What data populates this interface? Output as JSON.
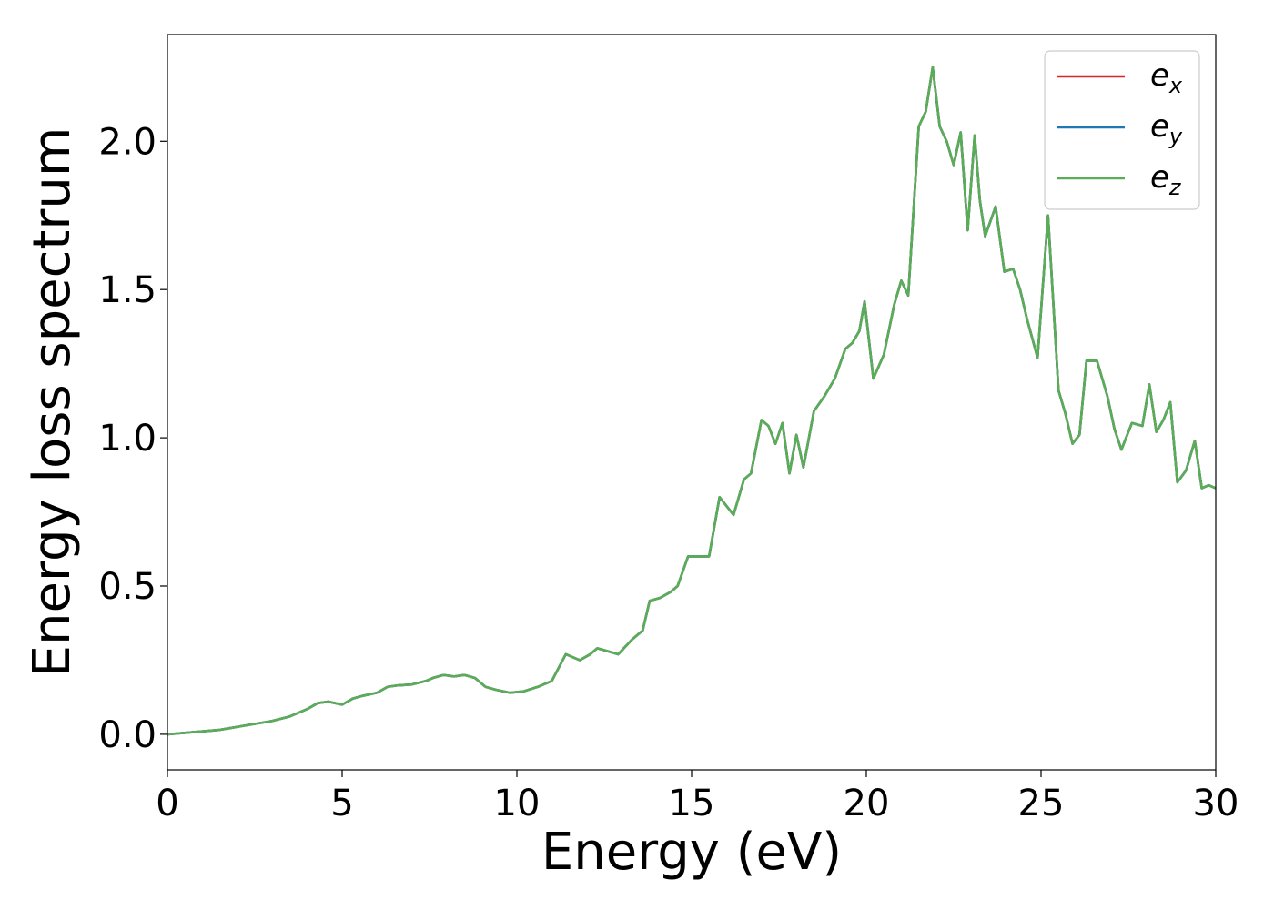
{
  "chart_data": {
    "type": "line",
    "xlabel": "Energy (eV)",
    "ylabel": "Energy loss spectrum",
    "xlim": [
      0,
      30
    ],
    "ylim": [
      -0.12,
      2.36
    ],
    "xticks": [
      "0",
      "5",
      "10",
      "15",
      "20",
      "25",
      "30"
    ],
    "yticks": [
      "0.0",
      "0.5",
      "1.0",
      "1.5",
      "2.0"
    ],
    "grid": false,
    "legend_position": "top-right",
    "x": [
      0,
      0.5,
      1.0,
      1.5,
      2.0,
      2.5,
      3.0,
      3.5,
      4.0,
      4.3,
      4.6,
      5.0,
      5.3,
      5.6,
      6.0,
      6.3,
      6.6,
      7.0,
      7.4,
      7.6,
      7.9,
      8.2,
      8.5,
      8.8,
      9.1,
      9.4,
      9.8,
      10.2,
      10.6,
      11.0,
      11.4,
      11.8,
      12.1,
      12.3,
      12.6,
      12.9,
      13.3,
      13.6,
      13.8,
      14.1,
      14.4,
      14.6,
      14.9,
      15.2,
      15.5,
      15.8,
      16.2,
      16.5,
      16.7,
      17.0,
      17.2,
      17.4,
      17.6,
      17.8,
      18.0,
      18.2,
      18.5,
      18.8,
      19.1,
      19.4,
      19.6,
      19.8,
      19.95,
      20.2,
      20.5,
      20.8,
      21.0,
      21.2,
      21.5,
      21.7,
      21.9,
      22.1,
      22.3,
      22.5,
      22.7,
      22.9,
      23.1,
      23.25,
      23.4,
      23.7,
      23.95,
      24.2,
      24.4,
      24.6,
      24.9,
      25.2,
      25.5,
      25.7,
      25.9,
      26.1,
      26.3,
      26.6,
      26.9,
      27.1,
      27.3,
      27.6,
      27.9,
      28.1,
      28.3,
      28.5,
      28.7,
      28.9,
      29.15,
      29.4,
      29.6,
      29.8,
      30.0
    ],
    "series": [
      {
        "name": "e_x",
        "label_base": "e",
        "label_sub": "x",
        "color": "#d62728",
        "y": [
          0.0,
          0.005,
          0.01,
          0.015,
          0.025,
          0.035,
          0.045,
          0.06,
          0.085,
          0.105,
          0.11,
          0.1,
          0.12,
          0.13,
          0.14,
          0.16,
          0.165,
          0.168,
          0.18,
          0.19,
          0.2,
          0.195,
          0.2,
          0.19,
          0.16,
          0.15,
          0.14,
          0.145,
          0.16,
          0.18,
          0.27,
          0.25,
          0.27,
          0.29,
          0.28,
          0.27,
          0.32,
          0.35,
          0.45,
          0.46,
          0.48,
          0.5,
          0.6,
          0.6,
          0.6,
          0.8,
          0.74,
          0.86,
          0.88,
          1.06,
          1.04,
          0.98,
          1.05,
          0.88,
          1.01,
          0.9,
          1.09,
          1.14,
          1.2,
          1.3,
          1.32,
          1.36,
          1.46,
          1.2,
          1.28,
          1.45,
          1.53,
          1.48,
          2.05,
          2.1,
          2.25,
          2.05,
          2.0,
          1.92,
          2.03,
          1.7,
          2.02,
          1.8,
          1.68,
          1.78,
          1.56,
          1.57,
          1.5,
          1.4,
          1.27,
          1.75,
          1.16,
          1.08,
          0.98,
          1.01,
          1.26,
          1.26,
          1.14,
          1.03,
          0.96,
          1.05,
          1.04,
          1.18,
          1.02,
          1.06,
          1.12,
          0.85,
          0.89,
          0.99,
          0.83,
          0.84,
          0.83
        ]
      },
      {
        "name": "e_y",
        "label_base": "e",
        "label_sub": "y",
        "color": "#1f77b4",
        "y": [
          0.0,
          0.005,
          0.01,
          0.015,
          0.025,
          0.035,
          0.045,
          0.06,
          0.085,
          0.105,
          0.11,
          0.1,
          0.12,
          0.13,
          0.14,
          0.16,
          0.165,
          0.168,
          0.18,
          0.19,
          0.2,
          0.195,
          0.2,
          0.19,
          0.16,
          0.15,
          0.14,
          0.145,
          0.16,
          0.18,
          0.27,
          0.25,
          0.27,
          0.29,
          0.28,
          0.27,
          0.32,
          0.35,
          0.45,
          0.46,
          0.48,
          0.5,
          0.6,
          0.6,
          0.6,
          0.8,
          0.74,
          0.86,
          0.88,
          1.06,
          1.04,
          0.98,
          1.05,
          0.88,
          1.01,
          0.9,
          1.09,
          1.14,
          1.2,
          1.3,
          1.32,
          1.36,
          1.46,
          1.2,
          1.28,
          1.45,
          1.53,
          1.48,
          2.05,
          2.1,
          2.25,
          2.05,
          2.0,
          1.92,
          2.03,
          1.7,
          2.02,
          1.8,
          1.68,
          1.78,
          1.56,
          1.57,
          1.5,
          1.4,
          1.27,
          1.75,
          1.16,
          1.08,
          0.98,
          1.01,
          1.26,
          1.26,
          1.14,
          1.03,
          0.96,
          1.05,
          1.04,
          1.18,
          1.02,
          1.06,
          1.12,
          0.85,
          0.89,
          0.99,
          0.83,
          0.84,
          0.83
        ]
      },
      {
        "name": "e_z",
        "label_base": "e",
        "label_sub": "z",
        "color": "#5aad57",
        "y": [
          0.0,
          0.005,
          0.01,
          0.015,
          0.025,
          0.035,
          0.045,
          0.06,
          0.085,
          0.105,
          0.11,
          0.1,
          0.12,
          0.13,
          0.14,
          0.16,
          0.165,
          0.168,
          0.18,
          0.19,
          0.2,
          0.195,
          0.2,
          0.19,
          0.16,
          0.15,
          0.14,
          0.145,
          0.16,
          0.18,
          0.27,
          0.25,
          0.27,
          0.29,
          0.28,
          0.27,
          0.32,
          0.35,
          0.45,
          0.46,
          0.48,
          0.5,
          0.6,
          0.6,
          0.6,
          0.8,
          0.74,
          0.86,
          0.88,
          1.06,
          1.04,
          0.98,
          1.05,
          0.88,
          1.01,
          0.9,
          1.09,
          1.14,
          1.2,
          1.3,
          1.32,
          1.36,
          1.46,
          1.2,
          1.28,
          1.45,
          1.53,
          1.48,
          2.05,
          2.1,
          2.25,
          2.05,
          2.0,
          1.92,
          2.03,
          1.7,
          2.02,
          1.8,
          1.68,
          1.78,
          1.56,
          1.57,
          1.5,
          1.4,
          1.27,
          1.75,
          1.16,
          1.08,
          0.98,
          1.01,
          1.26,
          1.26,
          1.14,
          1.03,
          0.96,
          1.05,
          1.04,
          1.18,
          1.02,
          1.06,
          1.12,
          0.85,
          0.89,
          0.99,
          0.83,
          0.84,
          0.83
        ]
      }
    ]
  }
}
